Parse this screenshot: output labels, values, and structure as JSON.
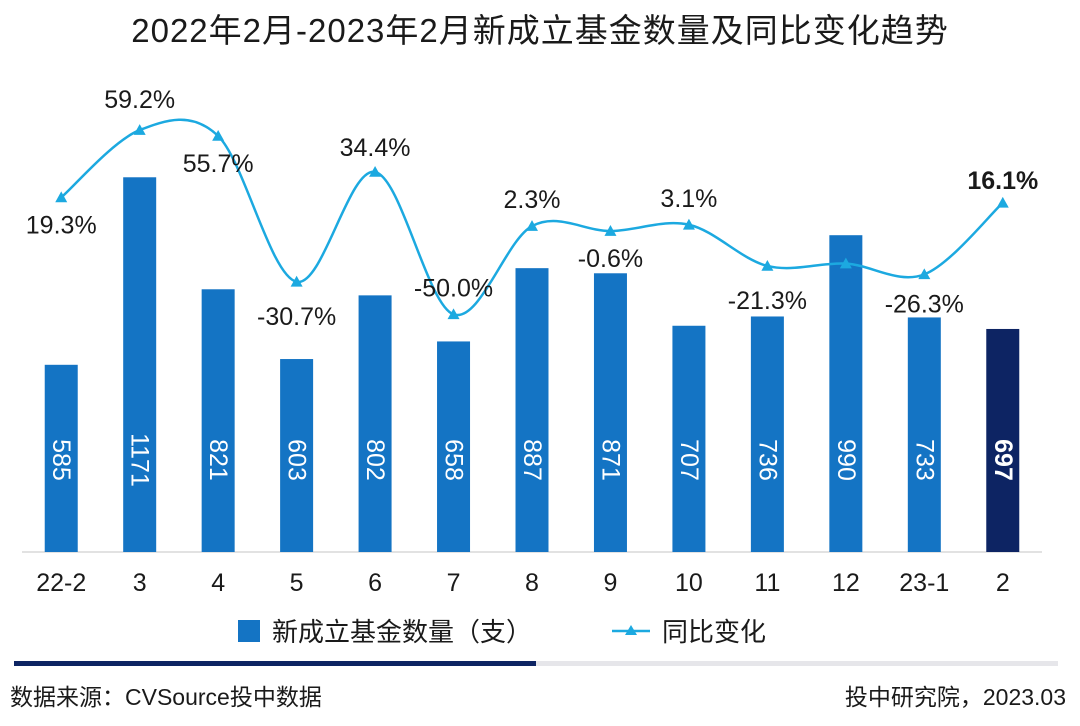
{
  "title": "2022年2月-2023年2月新成立基金数量及同比变化趋势",
  "legend": {
    "bar_label": "新成立基金数量（支）",
    "line_label": "同比变化"
  },
  "footer": {
    "source": "数据来源：CVSource投中数据",
    "credit": "投中研究院，2023.03"
  },
  "colors": {
    "bar": "#1474c4",
    "bar_highlight": "#0d2463",
    "line": "#1ca9e0",
    "footer_dark": "#0d2463",
    "footer_light": "#e6e6ea"
  },
  "chart_data": {
    "type": "bar",
    "categories": [
      "22-2",
      "3",
      "4",
      "5",
      "6",
      "7",
      "8",
      "9",
      "10",
      "11",
      "12",
      "23-1",
      "2"
    ],
    "series": [
      {
        "name": "新成立基金数量（支）",
        "type": "bar",
        "values": [
          585,
          1171,
          821,
          603,
          802,
          658,
          887,
          871,
          707,
          736,
          990,
          733,
          697
        ],
        "labels": [
          "585",
          "1171",
          "821",
          "603",
          "802",
          "658",
          "887",
          "871",
          "707",
          "736",
          "990",
          "733",
          "697"
        ]
      },
      {
        "name": "同比变化",
        "type": "line",
        "values": [
          19.3,
          59.2,
          55.7,
          -30.7,
          34.4,
          -50.0,
          2.3,
          -0.6,
          3.1,
          -21.3,
          -19.9,
          -26.3,
          16.1
        ],
        "labels": [
          "19.3%",
          "59.2%",
          "55.7%",
          "-30.7%",
          "34.4%",
          "-50.0%",
          "2.3%",
          "-0.6%",
          "3.1%",
          "-21.3%",
          "",
          "-26.3%",
          "16.1%"
        ]
      }
    ],
    "highlight_index": 12,
    "bar_ylim": [
      0,
      1200
    ],
    "line_ylim": [
      -80,
      80
    ],
    "grid": false,
    "legend_position": "bottom-center"
  }
}
